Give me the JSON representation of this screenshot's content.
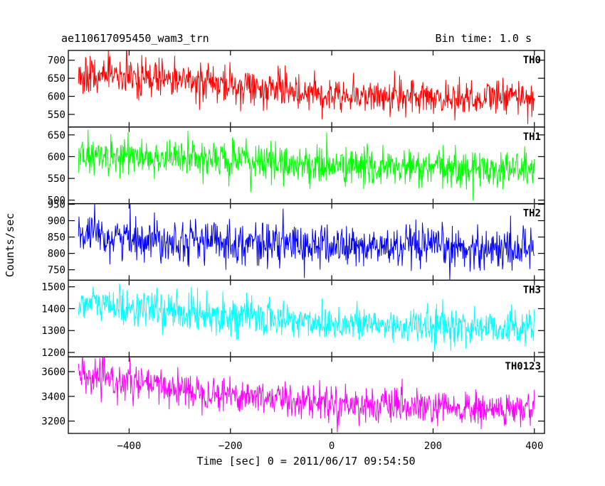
{
  "header": {
    "object_name": "ae110617095450_wam3_trn",
    "bin_time": "Bin time: 1.0 s"
  },
  "chart_data": {
    "type": "line",
    "xlabel": "Time [sec] 0 = 2011/06/17 09:54:50",
    "ylabel": "Counts/sec",
    "xlim": [
      -520,
      420
    ],
    "x_ticks": [
      -400,
      -200,
      0,
      200,
      400
    ],
    "x_range": [
      -500,
      400
    ],
    "bin_time_s": 1.0,
    "panels": [
      {
        "name": "TH0",
        "color": "#ff0000",
        "ylim": [
          515,
          727
        ],
        "y_ticks": [
          550,
          600,
          650,
          700
        ],
        "trend_x": [
          -500,
          -400,
          -300,
          -200,
          -100,
          0,
          100,
          200,
          300,
          400
        ],
        "trend_y": [
          655,
          650,
          643,
          630,
          618,
          607,
          600,
          595,
          596,
          598
        ],
        "noise_sd": 25
      },
      {
        "name": "TH1",
        "color": "#00ff00",
        "ylim": [
          492,
          668
        ],
        "y_ticks": [
          500,
          550,
          600,
          650
        ],
        "trend_x": [
          -500,
          -400,
          -300,
          -200,
          -100,
          0,
          100,
          200,
          300,
          400
        ],
        "trend_y": [
          602,
          600,
          597,
          592,
          585,
          578,
          575,
          572,
          572,
          573
        ],
        "noise_sd": 22
      },
      {
        "name": "TH2",
        "color": "#0000ff",
        "ylim": [
          718,
          952
        ],
        "y_ticks": [
          750,
          800,
          850,
          900,
          950
        ],
        "trend_x": [
          -500,
          -400,
          -300,
          -200,
          -100,
          0,
          100,
          200,
          300,
          400
        ],
        "trend_y": [
          852,
          848,
          842,
          835,
          828,
          822,
          818,
          816,
          815,
          815
        ],
        "noise_sd": 32
      },
      {
        "name": "TH3",
        "color": "#00ffff",
        "ylim": [
          1180,
          1530
        ],
        "y_ticks": [
          1200,
          1300,
          1400,
          1500
        ],
        "trend_x": [
          -500,
          -400,
          -300,
          -200,
          -100,
          0,
          100,
          200,
          300,
          400
        ],
        "trend_y": [
          1430,
          1405,
          1385,
          1370,
          1350,
          1335,
          1325,
          1320,
          1315,
          1318
        ],
        "noise_sd": 42
      },
      {
        "name": "TH0123",
        "color": "#ff00ff",
        "ylim": [
          3100,
          3720
        ],
        "y_ticks": [
          3200,
          3400,
          3600
        ],
        "trend_x": [
          -500,
          -400,
          -300,
          -200,
          -100,
          0,
          100,
          200,
          300,
          400
        ],
        "trend_y": [
          3560,
          3510,
          3460,
          3420,
          3380,
          3350,
          3320,
          3300,
          3290,
          3290
        ],
        "noise_sd": 70
      }
    ]
  }
}
